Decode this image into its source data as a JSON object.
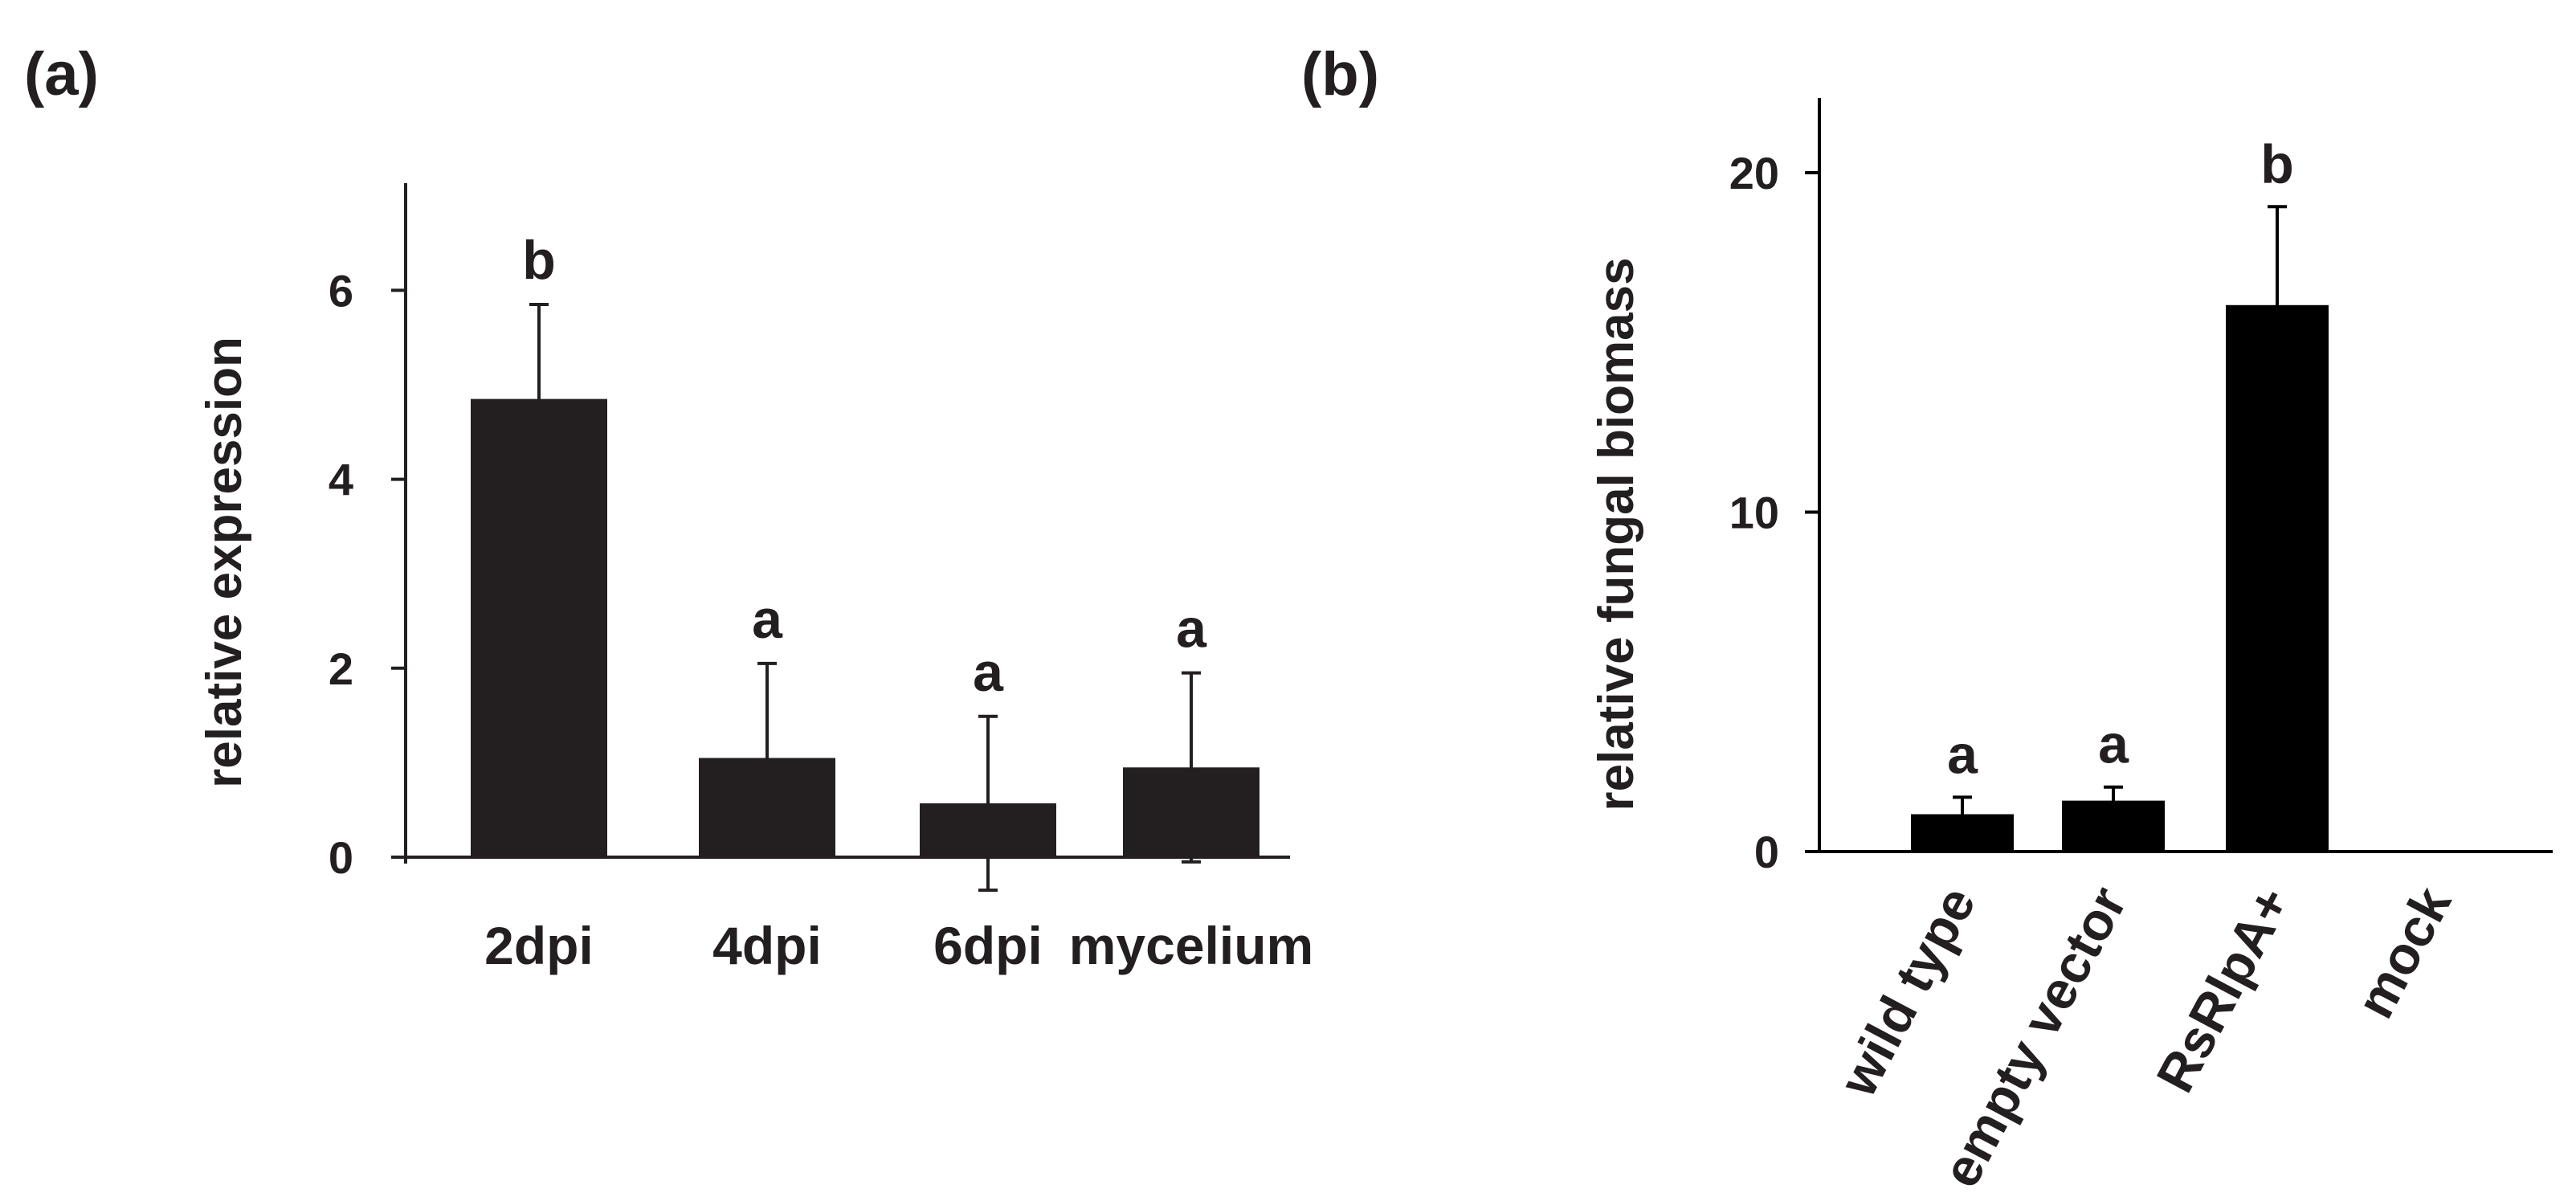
{
  "chart_data": [
    {
      "type": "bar",
      "panel_label": "(a)",
      "categories": [
        "2dpi",
        "4dpi",
        "6dpi",
        "mycelium"
      ],
      "values": [
        4.85,
        1.05,
        0.57,
        0.95
      ],
      "error": [
        1.0,
        1.0,
        0.92,
        1.0
      ],
      "significance": [
        "b",
        "a",
        "a",
        "a"
      ],
      "ylabel": "relative expression",
      "xlabel": "",
      "ylim": [
        0,
        7
      ],
      "yticks": [
        0,
        2,
        4,
        6
      ],
      "bar_color": "#231f20"
    },
    {
      "type": "bar",
      "panel_label": "(b)",
      "categories": [
        "wild type",
        "empty vector",
        "RsRlpA+",
        "mock"
      ],
      "values": [
        1.1,
        1.5,
        16.1,
        0
      ],
      "error": [
        0.5,
        0.4,
        2.9,
        0
      ],
      "significance": [
        "a",
        "a",
        "b",
        ""
      ],
      "ylabel": "relative fungal biomass",
      "xlabel": "",
      "ylim": [
        0,
        22
      ],
      "yticks": [
        0,
        10,
        20
      ],
      "bar_color": "#000000"
    }
  ]
}
